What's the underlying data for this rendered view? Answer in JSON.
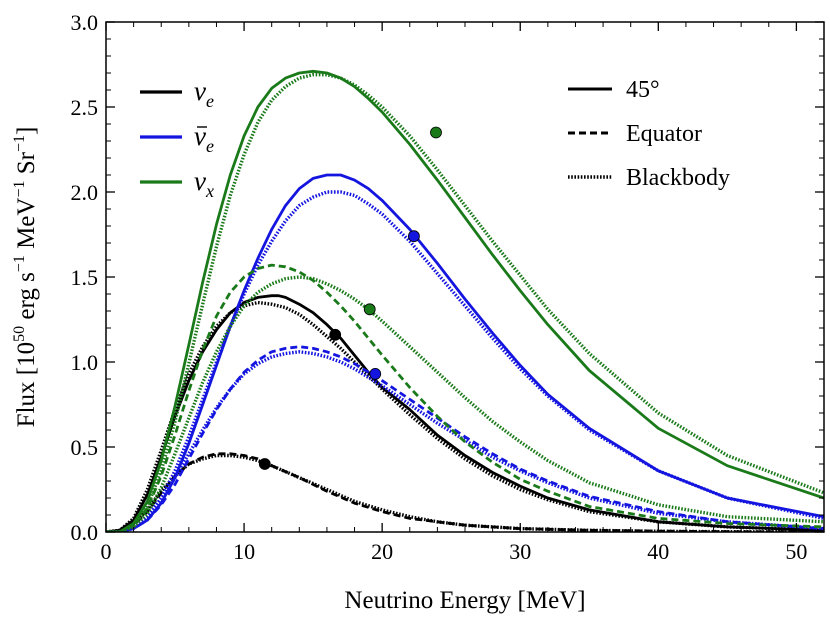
{
  "chart_data": {
    "type": "line",
    "xlabel": "Neutrino Energy [MeV]",
    "ylabel": "Flux [10^50 erg s^-1 MeV^-1 Sr^-1]",
    "ylabel_parts": {
      "pre": "Flux [10",
      "exp": "50",
      "mid1": " erg s",
      "exp2": "−1",
      "mid2": " MeV",
      "exp3": "−1",
      "mid3": " Sr",
      "exp4": "−1",
      "post": "]"
    },
    "xlim": [
      0,
      52
    ],
    "ylim": [
      0,
      3.0
    ],
    "xticks": [
      0,
      10,
      20,
      30,
      40,
      50
    ],
    "xtick_labels": [
      "0",
      "10",
      "20",
      "30",
      "40",
      "50"
    ],
    "yticks": [
      0.0,
      0.5,
      1.0,
      1.5,
      2.0,
      2.5,
      3.0
    ],
    "ytick_labels": [
      "0.0",
      "0.5",
      "1.0",
      "1.5",
      "2.0",
      "2.5",
      "3.0"
    ],
    "colors": {
      "nu_e": "#000000",
      "nubar_e": "#1515e0",
      "nu_x": "#1a7a1a"
    },
    "species_legend": [
      {
        "name": "nu_e",
        "sym": "ν",
        "sub": "e",
        "bar": false,
        "color": "#000000"
      },
      {
        "name": "nubar_e",
        "sym": "ν",
        "sub": "e",
        "bar": true,
        "color": "#1515e0"
      },
      {
        "name": "nu_x",
        "sym": "ν",
        "sub": "x",
        "bar": false,
        "color": "#1a7a1a"
      }
    ],
    "style_legend": [
      {
        "name": "45deg",
        "label": "45°",
        "dash": "solid"
      },
      {
        "name": "equator",
        "label": "Equator",
        "dash": "dashed"
      },
      {
        "name": "blackbody",
        "label": "Blackbody",
        "dash": "dotted"
      }
    ],
    "series": [
      {
        "name": "nu_e 45°",
        "species": "nu_e",
        "style": "solid",
        "x": [
          0,
          1,
          2,
          3,
          4,
          5,
          6,
          7,
          8,
          9,
          10,
          11,
          12,
          12.5,
          13,
          14,
          15,
          16,
          17,
          18,
          19,
          20,
          22,
          24,
          26,
          28,
          30,
          32,
          35,
          40,
          45,
          52
        ],
        "y": [
          0,
          0.01,
          0.07,
          0.22,
          0.44,
          0.68,
          0.89,
          1.06,
          1.19,
          1.29,
          1.35,
          1.38,
          1.39,
          1.39,
          1.38,
          1.34,
          1.29,
          1.22,
          1.14,
          1.04,
          0.94,
          0.85,
          0.72,
          0.57,
          0.45,
          0.35,
          0.27,
          0.2,
          0.13,
          0.06,
          0.03,
          0.01
        ]
      },
      {
        "name": "nu_e equator",
        "species": "nu_e",
        "style": "dashed",
        "x": [
          0,
          1,
          2,
          3,
          4,
          5,
          6,
          7,
          8,
          9,
          10,
          11,
          12,
          14,
          16,
          18,
          20,
          22,
          24,
          26,
          28,
          30,
          35,
          40,
          45,
          52
        ],
        "y": [
          0,
          0.01,
          0.04,
          0.12,
          0.23,
          0.33,
          0.4,
          0.44,
          0.46,
          0.46,
          0.45,
          0.43,
          0.39,
          0.32,
          0.24,
          0.17,
          0.12,
          0.08,
          0.06,
          0.04,
          0.03,
          0.02,
          0.01,
          0.005,
          0.002,
          0
        ]
      },
      {
        "name": "nu_e blackbody 45°",
        "species": "nu_e",
        "style": "dotted",
        "x": [
          0,
          1,
          2,
          3,
          4,
          5,
          6,
          7,
          8,
          9,
          10,
          11,
          12,
          13,
          14,
          15,
          16,
          17,
          18,
          19,
          20,
          22,
          24,
          26,
          28,
          30,
          32,
          35,
          40,
          45,
          52
        ],
        "y": [
          0,
          0.01,
          0.08,
          0.25,
          0.48,
          0.72,
          0.93,
          1.09,
          1.21,
          1.29,
          1.33,
          1.35,
          1.34,
          1.32,
          1.28,
          1.22,
          1.15,
          1.08,
          1.0,
          0.92,
          0.84,
          0.69,
          0.55,
          0.43,
          0.33,
          0.25,
          0.19,
          0.12,
          0.06,
          0.03,
          0.01
        ]
      },
      {
        "name": "nu_e blackbody equator",
        "species": "nu_e",
        "style": "dotted",
        "x": [
          0,
          1,
          2,
          3,
          4,
          5,
          6,
          7,
          8,
          9,
          10,
          11,
          12,
          14,
          16,
          18,
          20,
          22,
          24,
          26,
          28,
          30,
          35,
          40,
          45,
          52
        ],
        "y": [
          0,
          0.01,
          0.05,
          0.13,
          0.24,
          0.33,
          0.4,
          0.43,
          0.45,
          0.45,
          0.44,
          0.42,
          0.39,
          0.32,
          0.25,
          0.18,
          0.13,
          0.09,
          0.06,
          0.04,
          0.03,
          0.02,
          0.01,
          0.004,
          0.002,
          0
        ]
      },
      {
        "name": "nubar_e 45°",
        "species": "nubar_e",
        "style": "solid",
        "x": [
          0,
          1,
          2,
          3,
          4,
          5,
          6,
          7,
          8,
          9,
          10,
          11,
          12,
          13,
          14,
          15,
          16,
          17,
          18,
          19,
          20,
          22,
          24,
          26,
          28,
          30,
          32,
          35,
          40,
          45,
          52
        ],
        "y": [
          0,
          0,
          0.02,
          0.07,
          0.17,
          0.32,
          0.52,
          0.75,
          0.98,
          1.21,
          1.42,
          1.61,
          1.78,
          1.92,
          2.02,
          2.08,
          2.1,
          2.1,
          2.07,
          2.02,
          1.95,
          1.78,
          1.58,
          1.37,
          1.17,
          0.98,
          0.81,
          0.61,
          0.36,
          0.2,
          0.09
        ]
      },
      {
        "name": "nubar_e equator",
        "species": "nubar_e",
        "style": "dashed",
        "x": [
          0,
          1,
          2,
          3,
          4,
          5,
          6,
          7,
          8,
          9,
          10,
          11,
          12,
          13,
          14,
          15,
          16,
          17,
          18,
          19,
          20,
          22,
          24,
          26,
          28,
          30,
          32,
          35,
          40,
          45,
          52
        ],
        "y": [
          0,
          0,
          0.02,
          0.07,
          0.16,
          0.28,
          0.43,
          0.58,
          0.72,
          0.84,
          0.94,
          1.01,
          1.06,
          1.08,
          1.09,
          1.08,
          1.06,
          1.03,
          0.99,
          0.94,
          0.89,
          0.78,
          0.67,
          0.56,
          0.46,
          0.37,
          0.3,
          0.21,
          0.12,
          0.06,
          0.02
        ]
      },
      {
        "name": "nubar_e blackbody 45°",
        "species": "nubar_e",
        "style": "dotted",
        "x": [
          0,
          1,
          2,
          3,
          4,
          5,
          6,
          7,
          8,
          9,
          10,
          11,
          12,
          13,
          14,
          15,
          16,
          17,
          18,
          19,
          20,
          22,
          24,
          26,
          28,
          30,
          32,
          35,
          40,
          45,
          52
        ],
        "y": [
          0,
          0,
          0.03,
          0.09,
          0.2,
          0.36,
          0.56,
          0.78,
          1.0,
          1.21,
          1.4,
          1.57,
          1.71,
          1.83,
          1.92,
          1.97,
          2.0,
          2.0,
          1.98,
          1.93,
          1.87,
          1.71,
          1.52,
          1.33,
          1.14,
          0.96,
          0.8,
          0.6,
          0.36,
          0.2,
          0.08
        ]
      },
      {
        "name": "nubar_e blackbody equator",
        "species": "nubar_e",
        "style": "dotted",
        "x": [
          0,
          1,
          2,
          3,
          4,
          5,
          6,
          7,
          8,
          9,
          10,
          11,
          12,
          13,
          14,
          15,
          16,
          17,
          18,
          19,
          20,
          22,
          24,
          26,
          28,
          30,
          32,
          35,
          40,
          45,
          52
        ],
        "y": [
          0,
          0,
          0.03,
          0.09,
          0.19,
          0.32,
          0.46,
          0.6,
          0.73,
          0.84,
          0.93,
          0.99,
          1.03,
          1.05,
          1.06,
          1.05,
          1.03,
          1.0,
          0.96,
          0.91,
          0.86,
          0.75,
          0.64,
          0.54,
          0.44,
          0.36,
          0.29,
          0.2,
          0.11,
          0.06,
          0.02
        ]
      },
      {
        "name": "nu_x 45°",
        "species": "nu_x",
        "style": "solid",
        "x": [
          0,
          1,
          2,
          3,
          4,
          5,
          6,
          7,
          8,
          9,
          10,
          11,
          12,
          13,
          14,
          15,
          16,
          17,
          18,
          19,
          20,
          22,
          24,
          26,
          28,
          30,
          32,
          35,
          40,
          45,
          52
        ],
        "y": [
          0,
          0,
          0.05,
          0.18,
          0.42,
          0.74,
          1.1,
          1.47,
          1.81,
          2.1,
          2.33,
          2.5,
          2.61,
          2.67,
          2.7,
          2.71,
          2.7,
          2.67,
          2.62,
          2.55,
          2.47,
          2.28,
          2.07,
          1.85,
          1.63,
          1.42,
          1.22,
          0.95,
          0.61,
          0.39,
          0.2
        ]
      },
      {
        "name": "nu_x equator",
        "species": "nu_x",
        "style": "dashed",
        "x": [
          0,
          1,
          2,
          3,
          4,
          5,
          6,
          7,
          8,
          9,
          10,
          11,
          12,
          13,
          14,
          15,
          16,
          17,
          18,
          19,
          20,
          22,
          24,
          26,
          28,
          30,
          32,
          35,
          40,
          45,
          52
        ],
        "y": [
          0,
          0,
          0.04,
          0.14,
          0.33,
          0.57,
          0.83,
          1.07,
          1.27,
          1.41,
          1.5,
          1.55,
          1.57,
          1.56,
          1.53,
          1.48,
          1.41,
          1.33,
          1.24,
          1.14,
          1.04,
          0.85,
          0.68,
          0.53,
          0.41,
          0.31,
          0.24,
          0.15,
          0.08,
          0.05,
          0.03
        ]
      },
      {
        "name": "nu_x blackbody 45°",
        "species": "nu_x",
        "style": "dotted",
        "x": [
          0,
          1,
          2,
          3,
          4,
          5,
          6,
          7,
          8,
          9,
          10,
          11,
          12,
          13,
          14,
          15,
          16,
          17,
          18,
          19,
          20,
          22,
          24,
          26,
          28,
          30,
          32,
          35,
          40,
          45,
          52
        ],
        "y": [
          0,
          0,
          0.04,
          0.15,
          0.36,
          0.65,
          0.99,
          1.34,
          1.68,
          1.98,
          2.22,
          2.41,
          2.54,
          2.62,
          2.67,
          2.69,
          2.69,
          2.67,
          2.63,
          2.57,
          2.5,
          2.33,
          2.13,
          1.92,
          1.71,
          1.51,
          1.31,
          1.05,
          0.7,
          0.45,
          0.23
        ]
      },
      {
        "name": "nu_x blackbody equator",
        "species": "nu_x",
        "style": "dotted",
        "x": [
          0,
          1,
          2,
          3,
          4,
          5,
          6,
          7,
          8,
          9,
          10,
          11,
          12,
          13,
          14,
          15,
          16,
          17,
          18,
          19,
          20,
          22,
          24,
          26,
          28,
          30,
          32,
          35,
          40,
          45,
          52
        ],
        "y": [
          0,
          0,
          0.03,
          0.11,
          0.26,
          0.46,
          0.67,
          0.88,
          1.06,
          1.21,
          1.33,
          1.41,
          1.46,
          1.49,
          1.5,
          1.49,
          1.46,
          1.42,
          1.37,
          1.31,
          1.24,
          1.09,
          0.94,
          0.79,
          0.65,
          0.53,
          0.42,
          0.29,
          0.16,
          0.09,
          0.06
        ]
      }
    ],
    "markers": [
      {
        "species": "nu_e",
        "x": 16.6,
        "y": 1.16
      },
      {
        "species": "nu_e",
        "x": 11.5,
        "y": 0.4
      },
      {
        "species": "nubar_e",
        "x": 22.3,
        "y": 1.74
      },
      {
        "species": "nubar_e",
        "x": 19.5,
        "y": 0.93
      },
      {
        "species": "nu_x",
        "x": 23.9,
        "y": 2.35
      },
      {
        "species": "nu_x",
        "x": 19.1,
        "y": 1.31
      }
    ]
  }
}
